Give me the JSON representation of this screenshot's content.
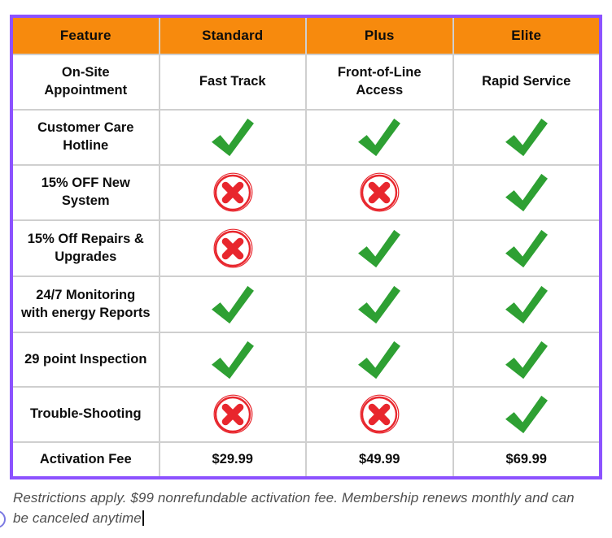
{
  "theme": {
    "border_purple": "#8C52FF",
    "header_orange": "#F78A0D",
    "grid_line": "#cfcfcf",
    "check_green": "#2EA033",
    "cross_red": "#E8262D",
    "table_text": "#0d0d0d",
    "footer_text_color": "#4f4f4f"
  },
  "icons": {
    "positive": "check-icon",
    "negative": "x-circle-icon",
    "cursor": "text-cursor"
  },
  "table": {
    "columns": [
      "Feature",
      "Standard",
      "Plus",
      "Elite"
    ],
    "rows": [
      {
        "feature_lines": [
          "On-Site",
          "Appointment"
        ],
        "cells": [
          {
            "lines": [
              "Fast Track"
            ]
          },
          {
            "lines": [
              "Front-of-Line",
              "Access"
            ]
          },
          {
            "lines": [
              "Rapid Service"
            ]
          }
        ]
      },
      {
        "feature_lines": [
          "Customer Care",
          "Hotline"
        ],
        "cells": [
          {
            "icon": "check"
          },
          {
            "icon": "check"
          },
          {
            "icon": "check"
          }
        ]
      },
      {
        "feature_lines": [
          "15% OFF New",
          "System"
        ],
        "cells": [
          {
            "icon": "cross"
          },
          {
            "icon": "cross"
          },
          {
            "icon": "check"
          }
        ]
      },
      {
        "feature_lines": [
          "15% Off Repairs &",
          "Upgrades"
        ],
        "cells": [
          {
            "icon": "cross"
          },
          {
            "icon": "check"
          },
          {
            "icon": "check"
          }
        ]
      },
      {
        "feature_lines": [
          "24/7 Monitoring",
          "with energy Reports"
        ],
        "cells": [
          {
            "icon": "check"
          },
          {
            "icon": "check"
          },
          {
            "icon": "check"
          }
        ]
      },
      {
        "feature_lines": [
          "29 point Inspection"
        ],
        "cells": [
          {
            "icon": "check"
          },
          {
            "icon": "check"
          },
          {
            "icon": "check"
          }
        ]
      },
      {
        "feature_lines": [
          "Trouble-Shooting"
        ],
        "cells": [
          {
            "icon": "cross"
          },
          {
            "icon": "cross"
          },
          {
            "icon": "check"
          }
        ]
      },
      {
        "feature_lines": [
          "Activation Fee"
        ],
        "cells": [
          {
            "lines": [
              "$29.99"
            ]
          },
          {
            "lines": [
              "$49.99"
            ]
          },
          {
            "lines": [
              "$69.99"
            ]
          }
        ]
      }
    ]
  },
  "footer": {
    "line1": "Restrictions apply. $99 nonrefundable activation fee. Membership renews monthly and can",
    "line2": "be canceled anytime"
  }
}
